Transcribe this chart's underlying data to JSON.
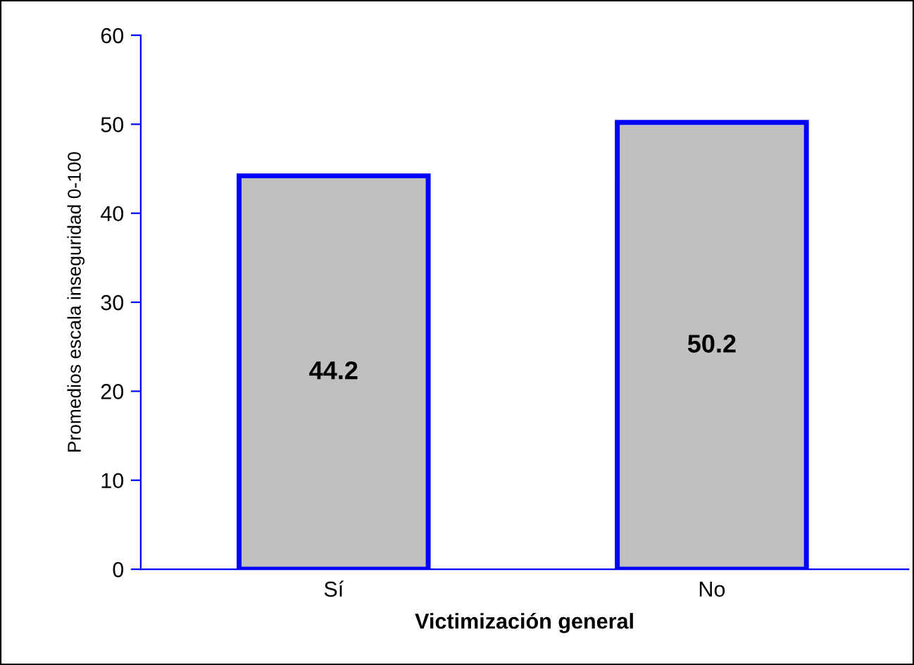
{
  "chart_data": {
    "type": "bar",
    "xlabel": "Victimización general",
    "ylabel": "Promedios escala inseguridad 0-100",
    "categories": [
      "Sí",
      "No"
    ],
    "values": [
      44.2,
      50.2
    ],
    "color": "#c0c0c0",
    "ylim": [
      0,
      60
    ],
    "yticks": [
      0,
      10,
      20,
      30,
      40,
      50,
      60
    ],
    "grid": false,
    "data_labels": true
  }
}
